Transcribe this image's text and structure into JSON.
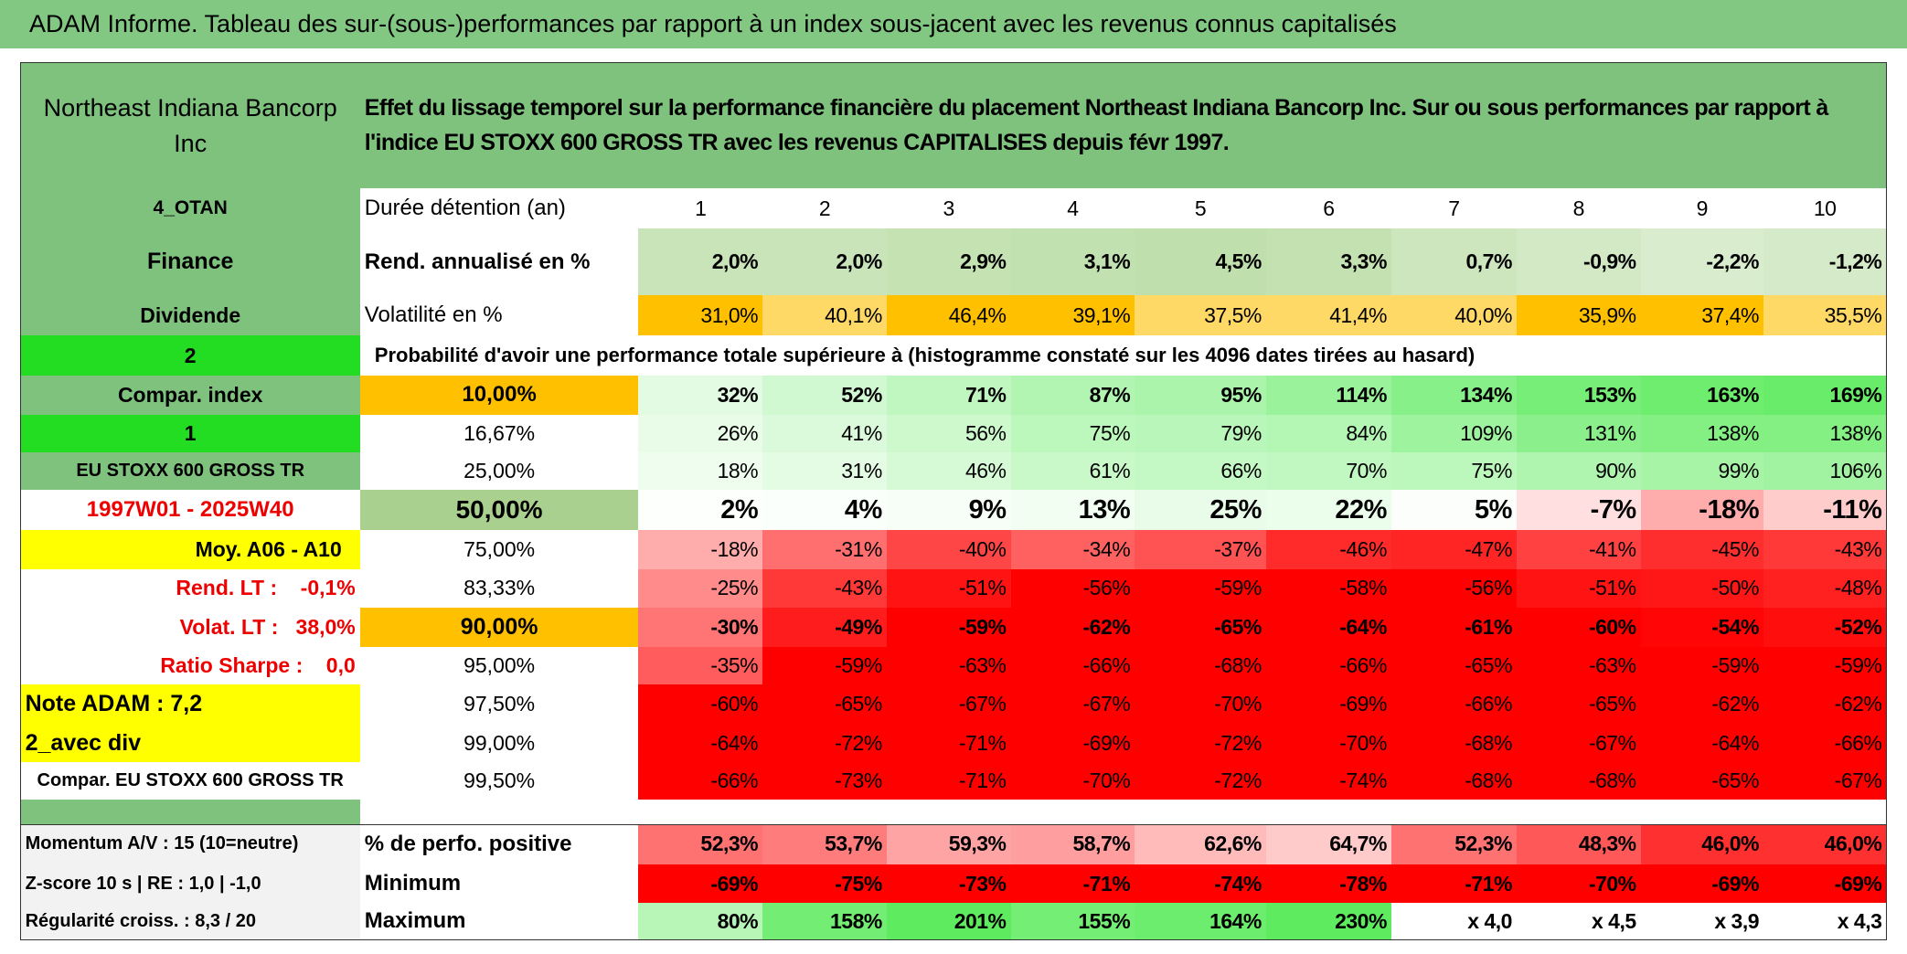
{
  "title": "ADAM Informe. Tableau des sur-(sous-)performances par rapport à un index sous-jacent avec les revenus connus capitalisés",
  "header": {
    "name": "Northeast Indiana Bancorp Inc",
    "description": "Effet du lissage temporel sur la performance financière du placement Northeast Indiana Bancorp Inc. Sur ou sous performances par rapport à l'indice EU STOXX 600 GROSS TR avec les revenus CAPITALISES depuis févr 1997."
  },
  "rows": [
    {
      "label": "4_OTAN",
      "name": "Durée détention (an)",
      "values": [
        "1",
        "2",
        "3",
        "4",
        "5",
        "6",
        "7",
        "8",
        "9",
        "10"
      ]
    },
    {
      "label": "Finance",
      "name": "Rend. annualisé en %",
      "values": [
        "2,0%",
        "2,0%",
        "2,9%",
        "3,1%",
        "4,5%",
        "3,3%",
        "0,7%",
        "-0,9%",
        "-2,2%",
        "-1,2%"
      ]
    },
    {
      "label": "Dividende",
      "name": "Volatilité en %",
      "values": [
        "31,0%",
        "40,1%",
        "46,4%",
        "39,1%",
        "37,5%",
        "41,4%",
        "40,0%",
        "35,9%",
        "37,4%",
        "35,5%"
      ]
    },
    {
      "label": "2",
      "name": "Probabilité d'avoir une performance totale supérieure à (histogramme constaté sur les 4096 dates tirées au hasard)"
    },
    {
      "label": "Compar. index",
      "name": "10,00%",
      "values": [
        "32%",
        "52%",
        "71%",
        "87%",
        "95%",
        "114%",
        "134%",
        "153%",
        "163%",
        "169%"
      ]
    },
    {
      "label": "1",
      "name": "16,67%",
      "values": [
        "26%",
        "41%",
        "56%",
        "75%",
        "79%",
        "84%",
        "109%",
        "131%",
        "138%",
        "138%"
      ]
    },
    {
      "label": "EU STOXX 600 GROSS TR",
      "name": "25,00%",
      "values": [
        "18%",
        "31%",
        "46%",
        "61%",
        "66%",
        "70%",
        "75%",
        "90%",
        "99%",
        "106%"
      ]
    },
    {
      "label": "1997W01 - 2025W40",
      "name": "50,00%",
      "values": [
        "2%",
        "4%",
        "9%",
        "13%",
        "25%",
        "22%",
        "5%",
        "-7%",
        "-18%",
        "-11%"
      ]
    },
    {
      "label": "Moy. A06 - A10",
      "name": "75,00%",
      "values": [
        "-18%",
        "-31%",
        "-40%",
        "-34%",
        "-37%",
        "-46%",
        "-47%",
        "-41%",
        "-45%",
        "-43%"
      ]
    },
    {
      "label": "Rend. LT :    -0,1%",
      "name": "83,33%",
      "values": [
        "-25%",
        "-43%",
        "-51%",
        "-56%",
        "-59%",
        "-58%",
        "-56%",
        "-51%",
        "-50%",
        "-48%"
      ]
    },
    {
      "label": "Volat. LT :   38,0%",
      "name": "90,00%",
      "values": [
        "-30%",
        "-49%",
        "-59%",
        "-62%",
        "-65%",
        "-64%",
        "-61%",
        "-60%",
        "-54%",
        "-52%"
      ]
    },
    {
      "label": "Ratio Sharpe :    0,0",
      "name": "95,00%",
      "values": [
        "-35%",
        "-59%",
        "-63%",
        "-66%",
        "-68%",
        "-66%",
        "-65%",
        "-63%",
        "-59%",
        "-59%"
      ]
    },
    {
      "label": "Note ADAM : 7,2",
      "name": "97,50%",
      "values": [
        "-60%",
        "-65%",
        "-67%",
        "-67%",
        "-70%",
        "-69%",
        "-66%",
        "-65%",
        "-62%",
        "-62%"
      ]
    },
    {
      "label": "2_avec div",
      "name": "99,00%",
      "values": [
        "-64%",
        "-72%",
        "-71%",
        "-69%",
        "-72%",
        "-70%",
        "-68%",
        "-67%",
        "-64%",
        "-66%"
      ]
    },
    {
      "label": "Compar. EU STOXX 600 GROSS TR",
      "name": "99,50%",
      "values": [
        "-66%",
        "-73%",
        "-71%",
        "-70%",
        "-72%",
        "-74%",
        "-68%",
        "-68%",
        "-65%",
        "-67%"
      ]
    },
    {
      "label": "Momentum A/V : 15 (10=neutre)",
      "name": "% de perfo. positive",
      "values": [
        "52,3%",
        "53,7%",
        "59,3%",
        "58,7%",
        "62,6%",
        "64,7%",
        "52,3%",
        "48,3%",
        "46,0%",
        "46,0%"
      ]
    },
    {
      "label": "Z-score 10 s | RE : 1,0 | -1,0",
      "name": "Minimum",
      "values": [
        "-69%",
        "-75%",
        "-73%",
        "-71%",
        "-74%",
        "-78%",
        "-71%",
        "-70%",
        "-69%",
        "-69%"
      ]
    },
    {
      "label": "Régularité croiss. : 8,3 / 20",
      "name": "Maximum",
      "values": [
        "80%",
        "158%",
        "201%",
        "155%",
        "164%",
        "230%",
        "x 4,0",
        "x 4,5",
        "x 3,9",
        "x 4,3"
      ]
    }
  ]
}
